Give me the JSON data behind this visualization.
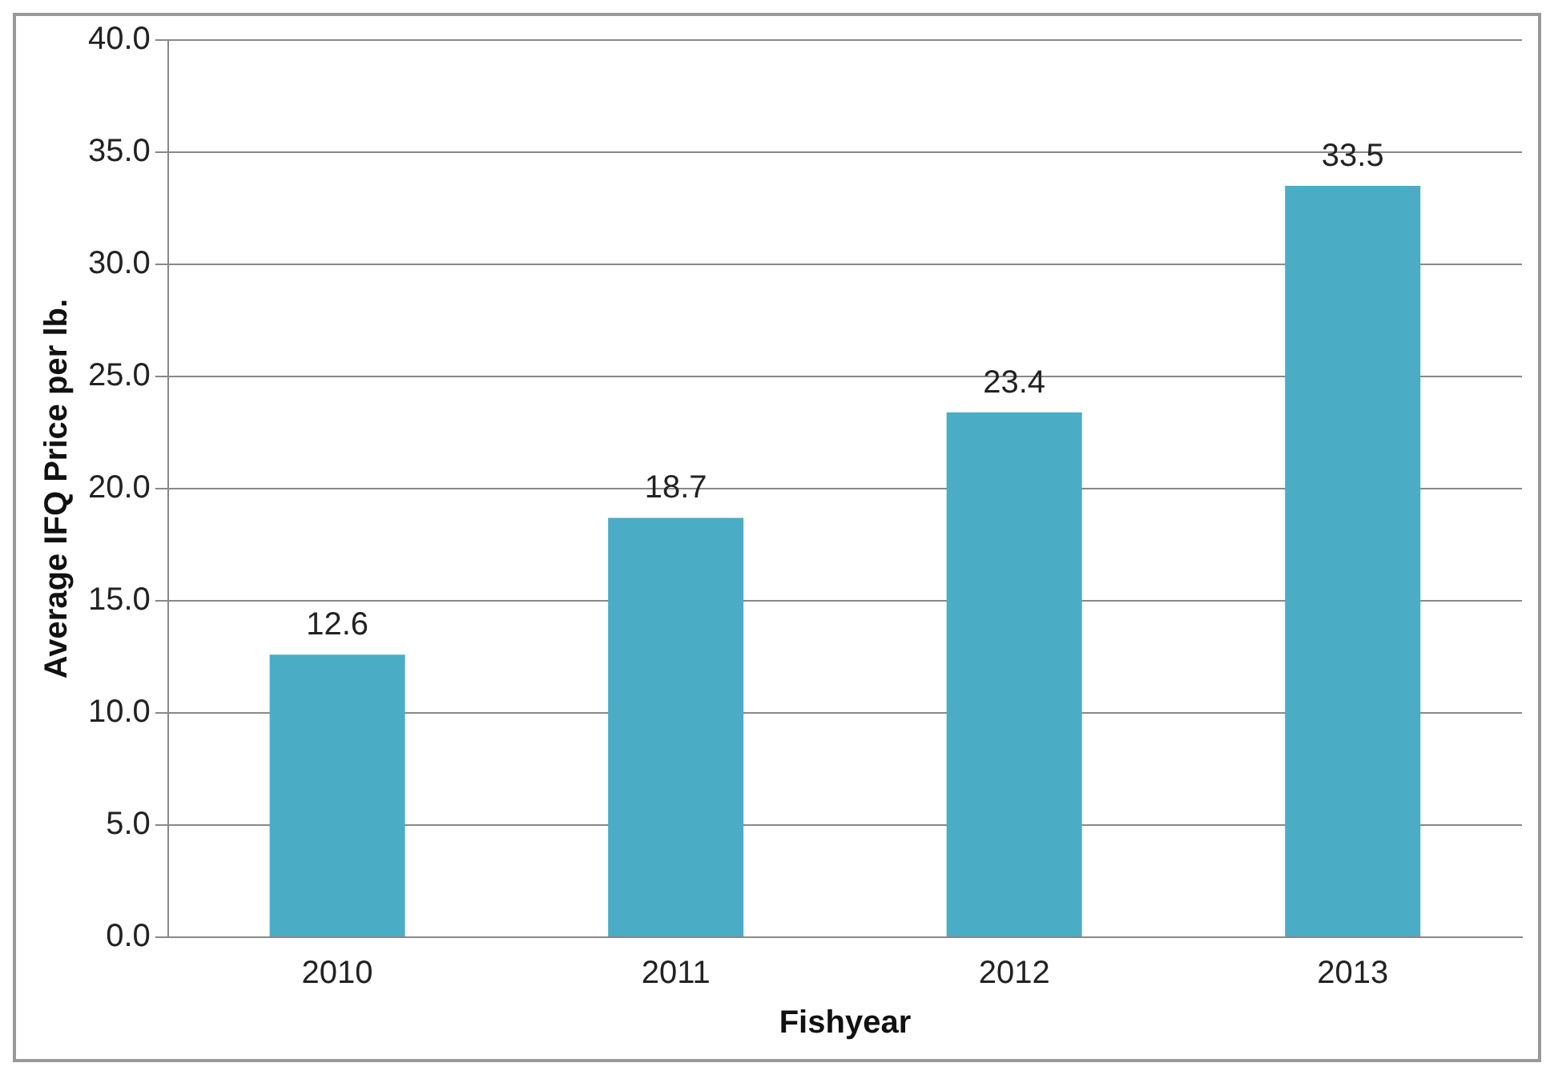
{
  "chart_data": {
    "type": "bar",
    "xlabel": "Fishyear",
    "ylabel": "Average IFQ Price per lb.",
    "categories": [
      "2010",
      "2011",
      "2012",
      "2013"
    ],
    "values": [
      12.6,
      18.7,
      23.4,
      33.5
    ],
    "color": "#4bacc6",
    "ylim": [
      0,
      40
    ],
    "yticks": [
      {
        "value": 0,
        "label": "0.0"
      },
      {
        "value": 5,
        "label": "5.0"
      },
      {
        "value": 10,
        "label": "10.0"
      },
      {
        "value": 15,
        "label": "15.0"
      },
      {
        "value": 20,
        "label": "20.0"
      },
      {
        "value": 25,
        "label": "25.0"
      },
      {
        "value": 30,
        "label": "30.0"
      },
      {
        "value": 35,
        "label": "35.0"
      },
      {
        "value": 40,
        "label": "40.0"
      }
    ],
    "grid": "y",
    "data_labels": true,
    "legend": false
  }
}
